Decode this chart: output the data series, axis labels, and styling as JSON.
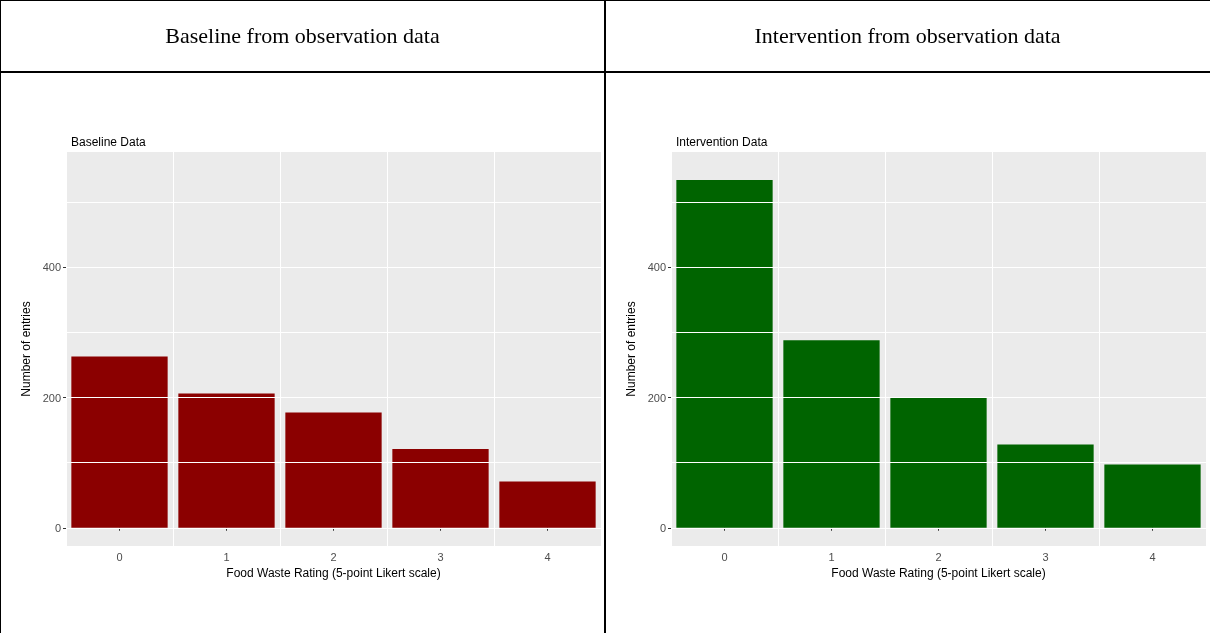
{
  "chart_data": [
    {
      "type": "bar",
      "title": "Baseline from observation data",
      "subtitle": "Baseline Data",
      "xlabel": "Food Waste Rating (5-point Likert scale)",
      "ylabel": "Number of entries",
      "categories": [
        "0",
        "1",
        "2",
        "3",
        "4"
      ],
      "values": [
        263,
        206,
        177,
        121,
        71
      ],
      "color": "#8b0000",
      "ylim": [
        -28,
        577
      ],
      "yticks": [
        0,
        {
          "value": 100,
          "label": null
        },
        200,
        {
          "value": 300,
          "label": null
        },
        400,
        {
          "value": 500,
          "label": null
        }
      ],
      "grid": true
    },
    {
      "type": "bar",
      "title": "Intervention from observation data",
      "subtitle": "Intervention Data",
      "xlabel": "Food Waste Rating (5-point Likert scale)",
      "ylabel": "Number of entries",
      "categories": [
        "0",
        "1",
        "2",
        "3",
        "4"
      ],
      "values": [
        534,
        288,
        200,
        128,
        97
      ],
      "color": "#006400",
      "ylim": [
        -28,
        577
      ],
      "yticks": [
        0,
        {
          "value": 100,
          "label": null
        },
        200,
        {
          "value": 300,
          "label": null
        },
        400,
        {
          "value": 500,
          "label": null
        }
      ],
      "grid": true
    }
  ]
}
